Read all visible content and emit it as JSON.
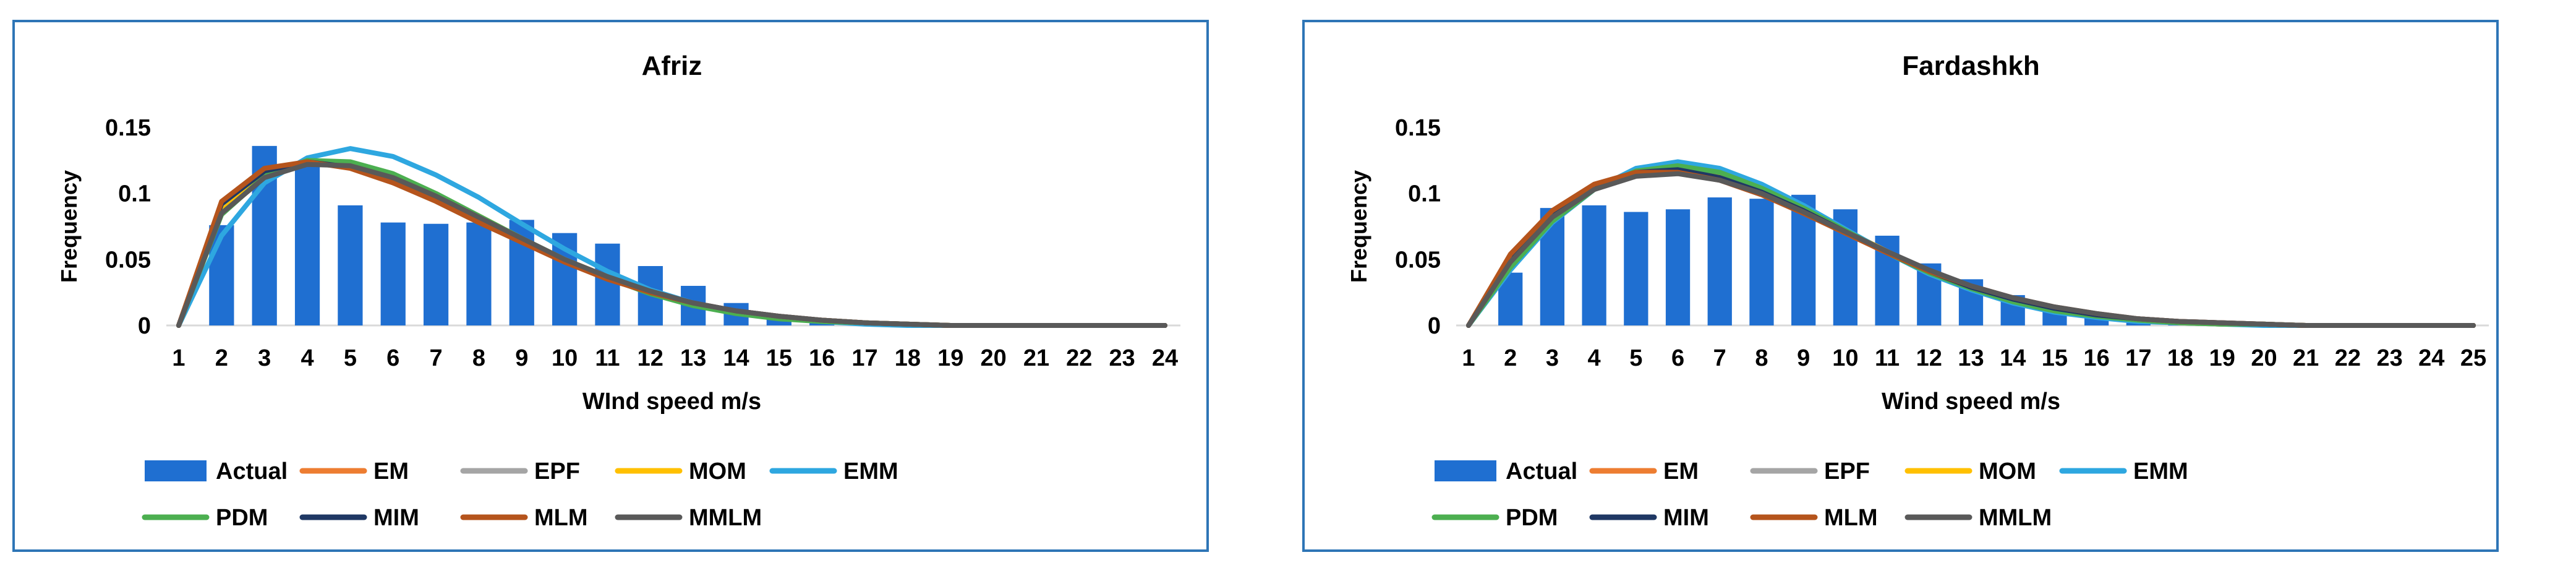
{
  "colors": {
    "Actual": "#1f6fd1",
    "EM": "#ed7d31",
    "EPF": "#a5a5a5",
    "MOM": "#ffc000",
    "EMM": "#2ea7e0",
    "PDM": "#4caf50",
    "MIM": "#1f3864",
    "MLM": "#b5541c",
    "MMLM": "#595959",
    "border": "#2e75b6",
    "axis": "#d9d9d9",
    "text": "#000000"
  },
  "chart_data": [
    {
      "type": "bar",
      "title": "Afriz",
      "xlabel": "WInd speed m/s",
      "ylabel": "Frequency",
      "ylim": [
        0,
        0.15
      ],
      "yticks": [
        "0",
        "0.05",
        "0.1",
        "0.15"
      ],
      "grid": false,
      "legend_position": "bottom",
      "categories": [
        "1",
        "2",
        "3",
        "4",
        "5",
        "6",
        "7",
        "8",
        "9",
        "10",
        "11",
        "12",
        "13",
        "14",
        "15",
        "16",
        "17",
        "18",
        "19",
        "20",
        "21",
        "22",
        "23",
        "24"
      ],
      "bars": {
        "name": "Actual",
        "values": [
          0,
          0.076,
          0.136,
          0.123,
          0.091,
          0.078,
          0.077,
          0.078,
          0.08,
          0.07,
          0.062,
          0.045,
          0.03,
          0.017,
          0.008,
          0.003,
          0.001,
          0,
          0,
          0,
          0,
          0,
          0,
          0
        ]
      },
      "series": [
        {
          "name": "EM",
          "values": [
            0,
            0.09,
            0.115,
            0.124,
            0.121,
            0.11,
            0.096,
            0.08,
            0.064,
            0.049,
            0.036,
            0.025,
            0.016,
            0.01,
            0.006,
            0.004,
            0.002,
            0.001,
            0,
            0,
            0,
            0,
            0,
            0
          ]
        },
        {
          "name": "EPF",
          "values": [
            0,
            0.088,
            0.114,
            0.123,
            0.122,
            0.112,
            0.098,
            0.082,
            0.065,
            0.05,
            0.036,
            0.025,
            0.016,
            0.01,
            0.006,
            0.004,
            0.002,
            0.001,
            0,
            0,
            0,
            0,
            0,
            0
          ]
        },
        {
          "name": "MOM",
          "values": [
            0,
            0.087,
            0.113,
            0.123,
            0.122,
            0.113,
            0.099,
            0.083,
            0.066,
            0.05,
            0.037,
            0.025,
            0.016,
            0.01,
            0.006,
            0.004,
            0.002,
            0.001,
            0,
            0,
            0,
            0,
            0,
            0
          ]
        },
        {
          "name": "EMM",
          "values": [
            0,
            0.068,
            0.108,
            0.127,
            0.134,
            0.128,
            0.114,
            0.097,
            0.077,
            0.058,
            0.041,
            0.027,
            0.017,
            0.01,
            0.006,
            0.003,
            0.001,
            0,
            0,
            0,
            0,
            0,
            0,
            0
          ]
        },
        {
          "name": "PDM",
          "values": [
            0,
            0.084,
            0.113,
            0.125,
            0.124,
            0.115,
            0.1,
            0.083,
            0.066,
            0.05,
            0.036,
            0.024,
            0.015,
            0.009,
            0.005,
            0.003,
            0.002,
            0.001,
            0,
            0,
            0,
            0,
            0,
            0
          ]
        },
        {
          "name": "MIM",
          "values": [
            0,
            0.092,
            0.117,
            0.124,
            0.12,
            0.109,
            0.095,
            0.079,
            0.064,
            0.049,
            0.036,
            0.025,
            0.017,
            0.011,
            0.007,
            0.004,
            0.002,
            0.001,
            0,
            0,
            0,
            0,
            0,
            0
          ]
        },
        {
          "name": "MLM",
          "values": [
            0,
            0.094,
            0.119,
            0.124,
            0.119,
            0.108,
            0.094,
            0.078,
            0.063,
            0.048,
            0.035,
            0.025,
            0.017,
            0.011,
            0.007,
            0.004,
            0.002,
            0.001,
            0,
            0,
            0,
            0,
            0,
            0
          ]
        },
        {
          "name": "MMLM",
          "values": [
            0,
            0.085,
            0.112,
            0.122,
            0.121,
            0.112,
            0.098,
            0.082,
            0.066,
            0.05,
            0.037,
            0.026,
            0.017,
            0.011,
            0.007,
            0.004,
            0.002,
            0.001,
            0,
            0,
            0,
            0,
            0,
            0
          ]
        }
      ]
    },
    {
      "type": "bar",
      "title": "Fardashkh",
      "xlabel": "Wind speed m/s",
      "ylabel": "Frequency",
      "ylim": [
        0,
        0.15
      ],
      "yticks": [
        "0",
        "0.05",
        "0.1",
        "0.15"
      ],
      "grid": false,
      "legend_position": "bottom",
      "categories": [
        "1",
        "2",
        "3",
        "4",
        "5",
        "6",
        "7",
        "8",
        "9",
        "10",
        "11",
        "12",
        "13",
        "14",
        "15",
        "16",
        "17",
        "18",
        "19",
        "20",
        "21",
        "22",
        "23",
        "24",
        "25"
      ],
      "bars": {
        "name": "Actual",
        "values": [
          0,
          0.04,
          0.089,
          0.091,
          0.086,
          0.088,
          0.097,
          0.096,
          0.099,
          0.088,
          0.068,
          0.047,
          0.035,
          0.023,
          0.012,
          0.006,
          0.002,
          0.001,
          0,
          0,
          0,
          0,
          0,
          0,
          0
        ]
      },
      "series": [
        {
          "name": "EM",
          "values": [
            0,
            0.052,
            0.085,
            0.106,
            0.115,
            0.117,
            0.111,
            0.1,
            0.086,
            0.07,
            0.055,
            0.041,
            0.029,
            0.02,
            0.013,
            0.008,
            0.005,
            0.003,
            0.002,
            0.001,
            0,
            0,
            0,
            0,
            0
          ]
        },
        {
          "name": "EPF",
          "values": [
            0,
            0.046,
            0.081,
            0.104,
            0.116,
            0.119,
            0.114,
            0.103,
            0.088,
            0.072,
            0.056,
            0.041,
            0.029,
            0.019,
            0.012,
            0.007,
            0.004,
            0.002,
            0.001,
            0.001,
            0,
            0,
            0,
            0,
            0
          ]
        },
        {
          "name": "MOM",
          "values": [
            0,
            0.045,
            0.08,
            0.103,
            0.116,
            0.12,
            0.115,
            0.104,
            0.089,
            0.072,
            0.056,
            0.041,
            0.029,
            0.019,
            0.012,
            0.007,
            0.004,
            0.002,
            0.001,
            0.001,
            0,
            0,
            0,
            0,
            0
          ]
        },
        {
          "name": "EMM",
          "values": [
            0,
            0.042,
            0.078,
            0.103,
            0.119,
            0.124,
            0.119,
            0.107,
            0.091,
            0.073,
            0.055,
            0.039,
            0.027,
            0.017,
            0.01,
            0.006,
            0.003,
            0.002,
            0.001,
            0,
            0,
            0,
            0,
            0,
            0
          ]
        },
        {
          "name": "PDM",
          "values": [
            0,
            0.044,
            0.079,
            0.103,
            0.117,
            0.121,
            0.116,
            0.104,
            0.089,
            0.072,
            0.055,
            0.04,
            0.028,
            0.018,
            0.011,
            0.007,
            0.004,
            0.002,
            0.001,
            0.001,
            0,
            0,
            0,
            0,
            0
          ]
        },
        {
          "name": "MIM",
          "values": [
            0,
            0.05,
            0.084,
            0.106,
            0.116,
            0.118,
            0.112,
            0.101,
            0.087,
            0.071,
            0.055,
            0.041,
            0.029,
            0.02,
            0.013,
            0.008,
            0.005,
            0.003,
            0.002,
            0.001,
            0,
            0,
            0,
            0,
            0
          ]
        },
        {
          "name": "MLM",
          "values": [
            0,
            0.054,
            0.087,
            0.107,
            0.116,
            0.116,
            0.11,
            0.099,
            0.085,
            0.07,
            0.055,
            0.041,
            0.03,
            0.021,
            0.014,
            0.009,
            0.005,
            0.003,
            0.002,
            0.001,
            0,
            0,
            0,
            0,
            0
          ]
        },
        {
          "name": "MMLM",
          "values": [
            0,
            0.048,
            0.082,
            0.103,
            0.113,
            0.115,
            0.11,
            0.1,
            0.086,
            0.071,
            0.056,
            0.042,
            0.03,
            0.021,
            0.014,
            0.009,
            0.005,
            0.003,
            0.002,
            0.001,
            0,
            0,
            0,
            0,
            0
          ]
        }
      ]
    }
  ]
}
